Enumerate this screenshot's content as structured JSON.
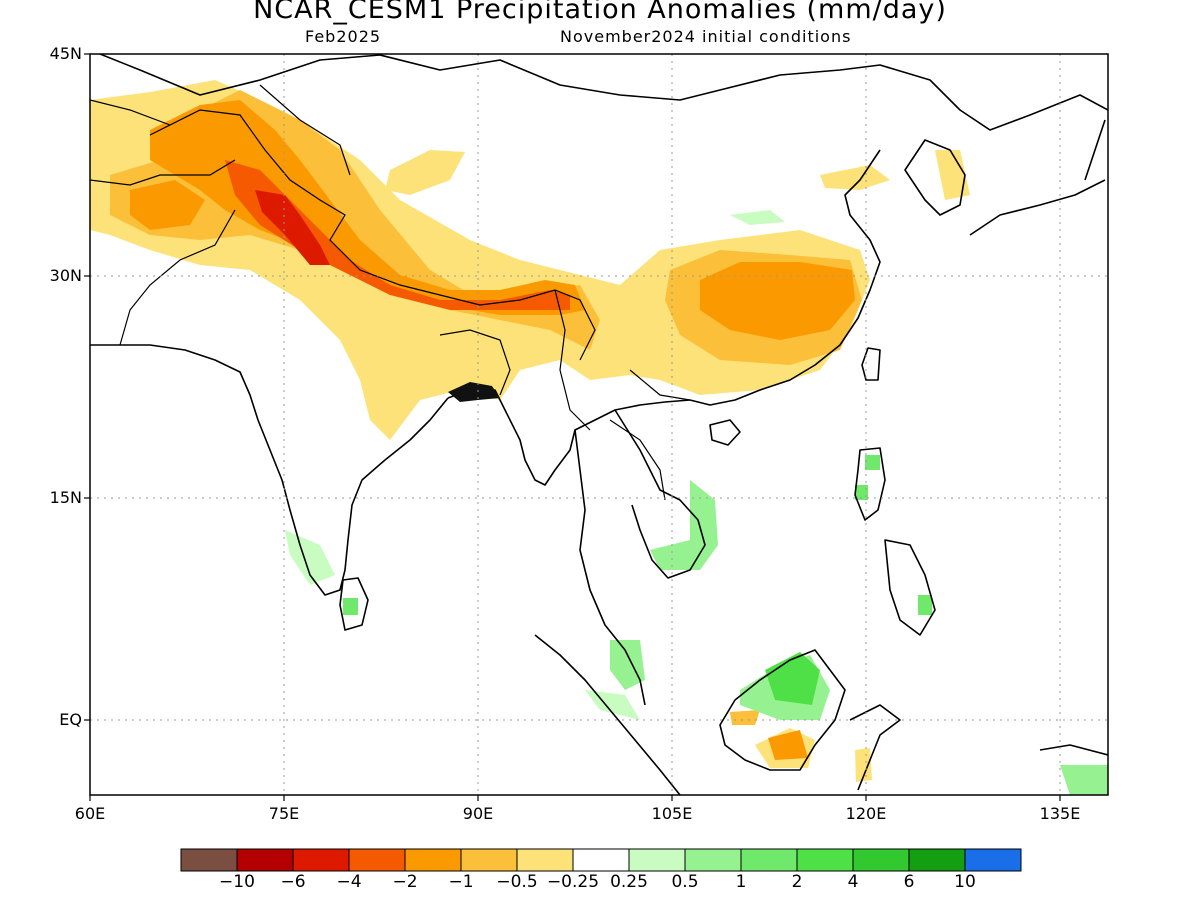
{
  "title": "NCAR_CESM1 Precipitation Anomalies (mm/day)",
  "subtitle_left": "Feb2025",
  "subtitle_right": "November2024 initial conditions",
  "lat_labels": [
    "45N",
    "30N",
    "15N",
    "EQ"
  ],
  "lon_labels": [
    "60E",
    "75E",
    "90E",
    "105E",
    "120E",
    "135E"
  ],
  "colorbar": {
    "colors": [
      "#7a4f42",
      "#b50000",
      "#dd1a00",
      "#f55a00",
      "#fa9a00",
      "#fcbf3a",
      "#fde27a",
      "#ffffff",
      "#c8fcc0",
      "#96f290",
      "#6fe86c",
      "#4fe048",
      "#31c830",
      "#149e12",
      "#1a6ee8"
    ],
    "labels": [
      "−10",
      "−6",
      "−4",
      "−2",
      "−1",
      "−0.5",
      "−0.25",
      "0.25",
      "0.5",
      "1",
      "2",
      "4",
      "6",
      "10"
    ]
  }
}
